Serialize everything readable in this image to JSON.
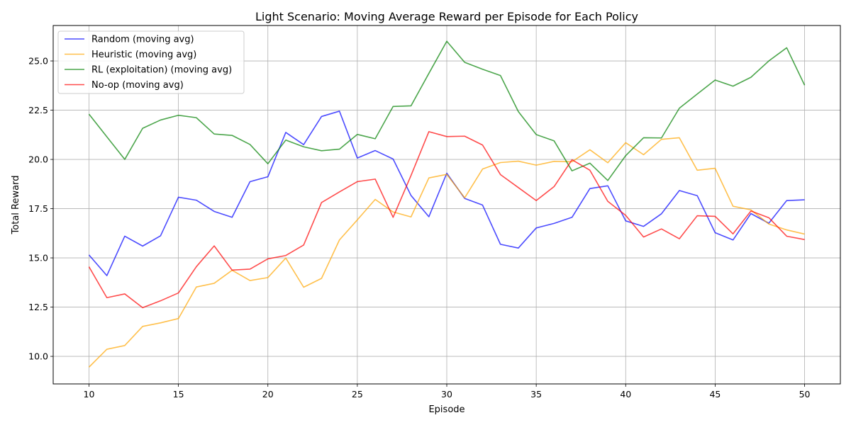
{
  "chart_data": {
    "type": "line",
    "title": "Light Scenario: Moving Average Reward per Episode for Each Policy",
    "xlabel": "Episode",
    "ylabel": "Total Reward",
    "xlim": [
      8,
      52
    ],
    "ylim": [
      8.6,
      26.8
    ],
    "xticks": [
      10,
      15,
      20,
      25,
      30,
      35,
      40,
      45,
      50
    ],
    "yticks": [
      10.0,
      12.5,
      15.0,
      17.5,
      20.0,
      22.5,
      25.0
    ],
    "ytick_labels": [
      "10.0",
      "12.5",
      "15.0",
      "17.5",
      "20.0",
      "22.5",
      "25.0"
    ],
    "grid": true,
    "legend_position": "top-left",
    "x": [
      10,
      11,
      12,
      13,
      14,
      15,
      16,
      17,
      18,
      19,
      20,
      21,
      22,
      23,
      24,
      25,
      26,
      27,
      28,
      29,
      30,
      31,
      32,
      33,
      34,
      35,
      36,
      37,
      38,
      39,
      40,
      41,
      42,
      43,
      44,
      45,
      46,
      47,
      48,
      49,
      50
    ],
    "series": [
      {
        "name": "Random (moving avg)",
        "color": "#0000ff",
        "values": [
          15.15,
          14.1,
          16.1,
          15.6,
          16.12,
          18.08,
          17.93,
          17.36,
          17.06,
          18.87,
          19.12,
          21.37,
          20.75,
          22.18,
          22.45,
          20.07,
          20.45,
          20.02,
          18.17,
          17.09,
          19.3,
          18.02,
          17.68,
          15.69,
          15.5,
          16.52,
          16.75,
          17.06,
          18.52,
          18.66,
          16.88,
          16.6,
          17.24,
          18.42,
          18.16,
          16.28,
          15.91,
          17.25,
          16.76,
          17.91,
          17.95
        ]
      },
      {
        "name": "Heuristic (moving avg)",
        "color": "#ffa500",
        "values": [
          9.45,
          10.36,
          10.55,
          11.52,
          11.7,
          11.92,
          13.52,
          13.71,
          14.37,
          13.85,
          14.0,
          14.99,
          13.51,
          13.96,
          15.91,
          16.93,
          17.97,
          17.33,
          17.08,
          19.06,
          19.24,
          18.05,
          19.51,
          19.84,
          19.91,
          19.71,
          19.9,
          19.88,
          20.49,
          19.83,
          20.85,
          20.24,
          21.02,
          21.1,
          19.45,
          19.55,
          17.62,
          17.44,
          16.72,
          16.42,
          16.21
        ]
      },
      {
        "name": "RL (exploitation) (moving avg)",
        "color": "#008000",
        "values": [
          22.3,
          21.15,
          20.0,
          21.58,
          22.0,
          22.24,
          22.12,
          21.29,
          21.22,
          20.76,
          19.78,
          20.98,
          20.64,
          20.44,
          20.52,
          21.27,
          21.05,
          22.69,
          22.72,
          24.37,
          26.0,
          24.93,
          24.58,
          24.26,
          22.43,
          21.26,
          20.94,
          19.42,
          19.81,
          18.93,
          20.19,
          21.1,
          21.09,
          22.6,
          23.32,
          24.03,
          23.72,
          24.17,
          25.0,
          25.67,
          23.77
        ]
      },
      {
        "name": "No-op (moving avg)",
        "color": "#ff0000",
        "values": [
          14.55,
          12.98,
          13.17,
          12.47,
          12.82,
          13.22,
          14.55,
          15.61,
          14.38,
          14.43,
          14.95,
          15.12,
          15.65,
          17.81,
          18.35,
          18.87,
          19.0,
          17.06,
          19.18,
          21.41,
          21.16,
          21.18,
          20.73,
          19.23,
          18.57,
          17.91,
          18.62,
          19.98,
          19.45,
          17.87,
          17.16,
          16.06,
          16.47,
          15.97,
          17.14,
          17.11,
          16.22,
          17.38,
          17.04,
          16.1,
          15.93
        ]
      }
    ]
  }
}
